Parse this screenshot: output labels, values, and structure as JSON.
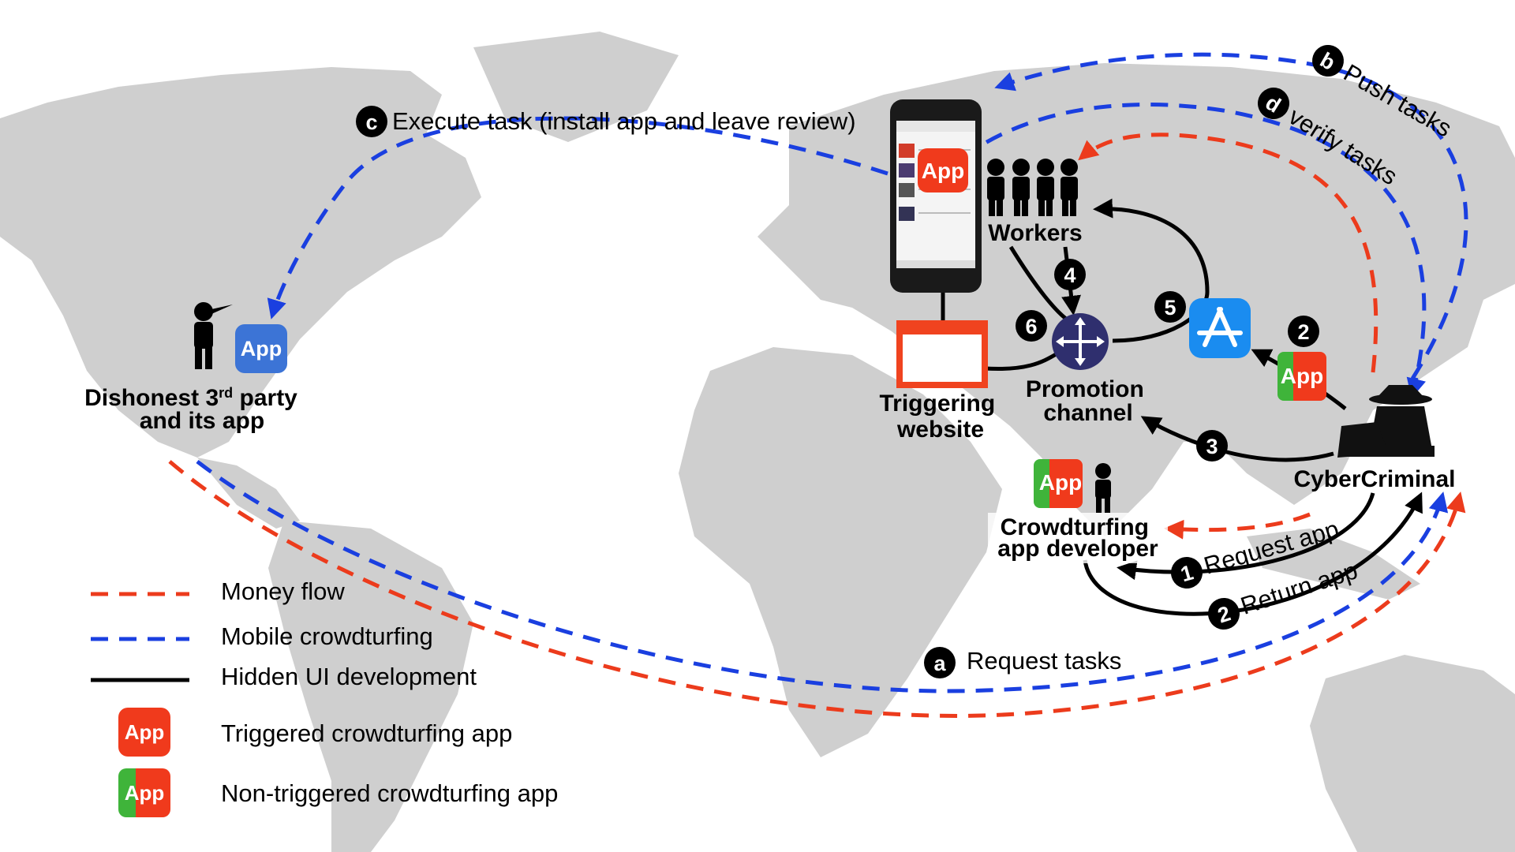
{
  "colors": {
    "money": "#ec3b1c",
    "crowdturfing": "#1a3fe0",
    "hidden_ui": "#000000",
    "app_red": "#f03a1c",
    "app_green": "#3fb43a",
    "app_blue": "#3c74d6",
    "land": "#cfcfcf"
  },
  "steps": {
    "a": {
      "badge": "a",
      "text": "Request tasks"
    },
    "b": {
      "badge": "b",
      "text": "Push tasks"
    },
    "c": {
      "badge": "c",
      "text": "Execute task (install app and leave review)"
    },
    "d": {
      "badge": "d",
      "text": "verify tasks"
    },
    "s1": {
      "badge": "1",
      "text": "Request app"
    },
    "s2": {
      "badge": "2",
      "text": "Return app"
    },
    "s2b": {
      "badge": "2"
    },
    "s3": {
      "badge": "3"
    },
    "s4": {
      "badge": "4"
    },
    "s5": {
      "badge": "5"
    },
    "s6": {
      "badge": "6"
    }
  },
  "nodes": {
    "workers": "Workers",
    "promotion_channel": [
      "Promotion",
      "channel"
    ],
    "triggering_website": [
      "Triggering",
      "website"
    ],
    "cybercriminal": "CyberCriminal",
    "developer": [
      "Crowdturfing",
      "app developer"
    ],
    "third_party_line1_pre": "Dishonest 3",
    "third_party_line1_sup": "rd",
    "third_party_line1_post": " party",
    "third_party_line2": "and its app",
    "app_label": "App"
  },
  "legend": [
    {
      "icon": "red-dashed-line",
      "text": "Money flow"
    },
    {
      "icon": "blue-dashed-line",
      "text": "Mobile crowdturfing"
    },
    {
      "icon": "black-solid-line",
      "text": "Hidden UI development"
    },
    {
      "icon": "red-app-icon",
      "text": "Triggered crowdturfing app"
    },
    {
      "icon": "red-green-app-icon",
      "text": "Non-triggered crowdturfing app"
    }
  ]
}
